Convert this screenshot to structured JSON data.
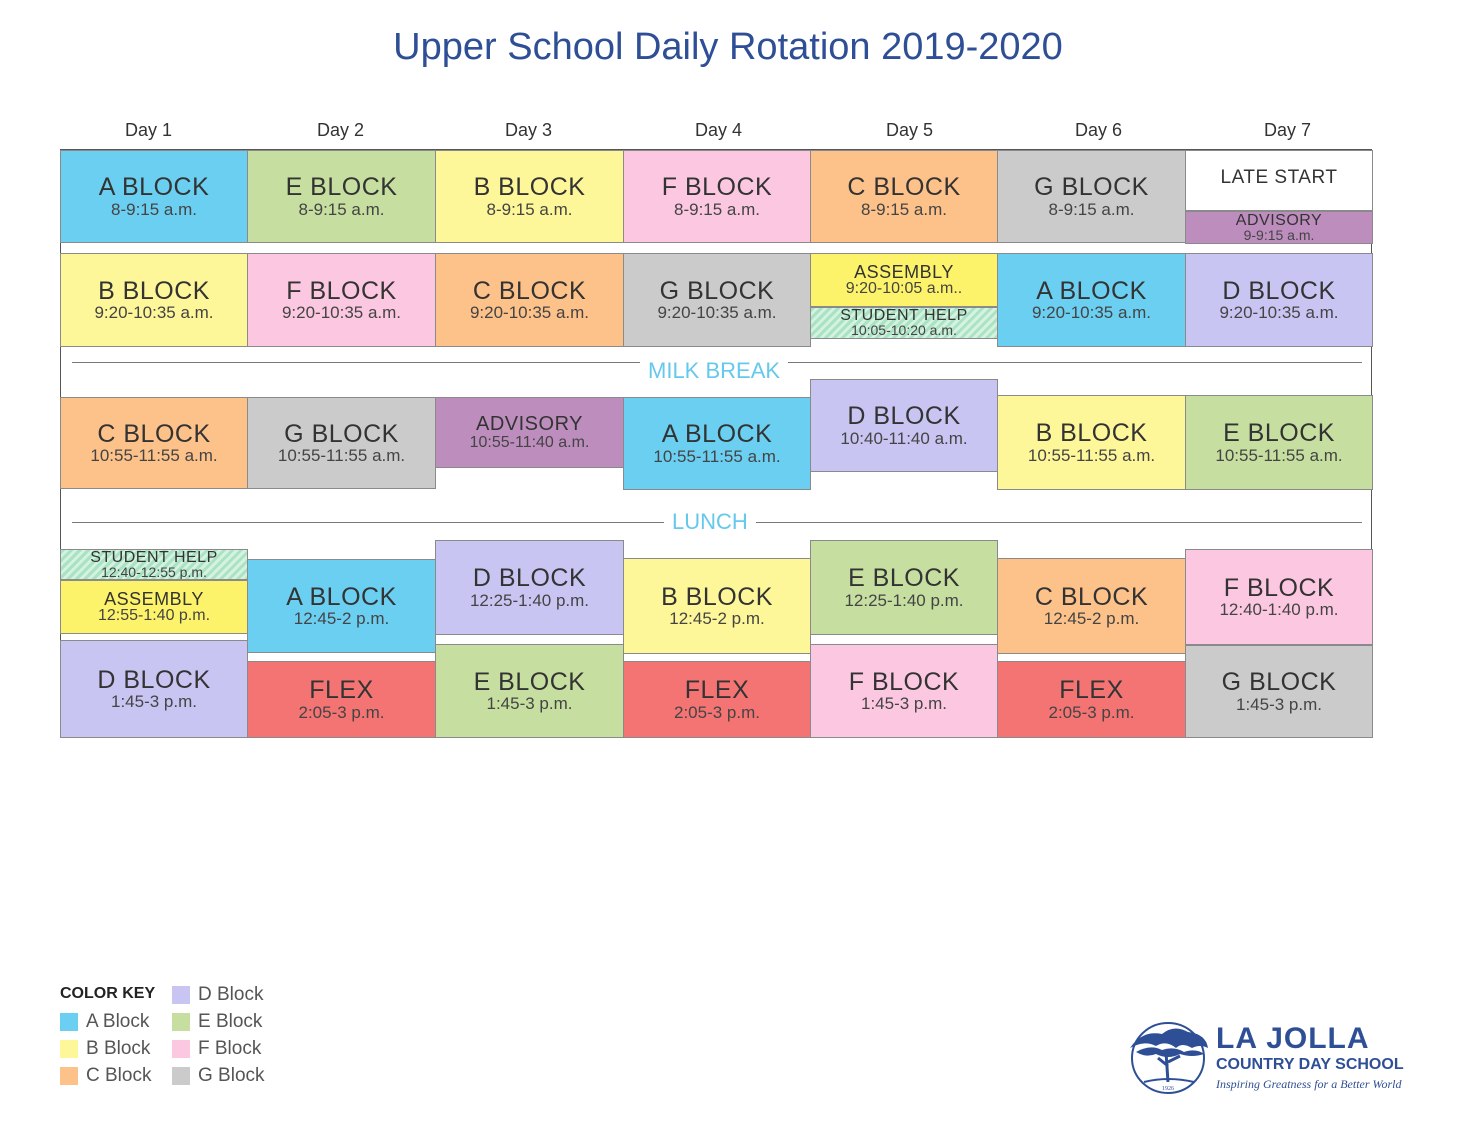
{
  "title": "Upper School Daily Rotation 2019-2020",
  "days": [
    "Day 1",
    "Day 2",
    "Day 3",
    "Day 4",
    "Day 5",
    "Day 6",
    "Day 7"
  ],
  "separators": {
    "milk_break": "MILK BREAK",
    "lunch": "LUNCH"
  },
  "colors": {
    "A": "#6bcff2",
    "B": "#fdf79a",
    "C": "#fdc18a",
    "D": "#c9c5f3",
    "E": "#c6dfa0",
    "F": "#fcc8e1",
    "G": "#cbcbcb",
    "advisory": "#bd8dbd",
    "assembly": "#fdf36a",
    "flex": "#f47474",
    "student_help": "#a9e3c2",
    "title": "#2e4f96",
    "separator_text": "#64c9ec"
  },
  "schedule": [
    {
      "day": "Day 1",
      "blocks": [
        {
          "name": "A BLOCK",
          "time": "8-9:15 a.m."
        },
        {
          "name": "B BLOCK",
          "time": "9:20-10:35 a.m."
        },
        {
          "name": "C BLOCK",
          "time": "10:55-11:55 a.m."
        },
        {
          "name": "STUDENT HELP",
          "time": "12:40-12:55 p.m."
        },
        {
          "name": "ASSEMBLY",
          "time": "12:55-1:40 p.m."
        },
        {
          "name": "D BLOCK",
          "time": "1:45-3 p.m."
        }
      ]
    },
    {
      "day": "Day 2",
      "blocks": [
        {
          "name": "E BLOCK",
          "time": "8-9:15 a.m."
        },
        {
          "name": "F BLOCK",
          "time": "9:20-10:35 a.m."
        },
        {
          "name": "G BLOCK",
          "time": "10:55-11:55 a.m."
        },
        {
          "name": "A BLOCK",
          "time": "12:45-2 p.m."
        },
        {
          "name": "FLEX",
          "time": "2:05-3 p.m."
        }
      ]
    },
    {
      "day": "Day 3",
      "blocks": [
        {
          "name": "B BLOCK",
          "time": "8-9:15 a.m."
        },
        {
          "name": "C BLOCK",
          "time": "9:20-10:35 a.m."
        },
        {
          "name": "ADVISORY",
          "time": "10:55-11:40 a.m."
        },
        {
          "name": "D BLOCK",
          "time": "12:25-1:40 p.m."
        },
        {
          "name": "E BLOCK",
          "time": "1:45-3 p.m."
        }
      ]
    },
    {
      "day": "Day 4",
      "blocks": [
        {
          "name": "F BLOCK",
          "time": "8-9:15 a.m."
        },
        {
          "name": "G BLOCK",
          "time": "9:20-10:35 a.m."
        },
        {
          "name": "A BLOCK",
          "time": "10:55-11:55 a.m."
        },
        {
          "name": "B BLOCK",
          "time": "12:45-2 p.m."
        },
        {
          "name": "FLEX",
          "time": "2:05-3 p.m."
        }
      ]
    },
    {
      "day": "Day 5",
      "blocks": [
        {
          "name": "C BLOCK",
          "time": "8-9:15 a.m."
        },
        {
          "name": "ASSEMBLY",
          "time": "9:20-10:05 a.m.."
        },
        {
          "name": "STUDENT HELP",
          "time": "10:05-10:20 a.m."
        },
        {
          "name": "D BLOCK",
          "time": "10:40-11:40 a.m."
        },
        {
          "name": "E BLOCK",
          "time": "12:25-1:40 p.m."
        },
        {
          "name": "F BLOCK",
          "time": "1:45-3 p.m."
        }
      ]
    },
    {
      "day": "Day 6",
      "blocks": [
        {
          "name": "G BLOCK",
          "time": "8-9:15 a.m."
        },
        {
          "name": "A BLOCK",
          "time": "9:20-10:35 a.m."
        },
        {
          "name": "B BLOCK",
          "time": "10:55-11:55 a.m."
        },
        {
          "name": "C BLOCK",
          "time": "12:45-2 p.m."
        },
        {
          "name": "FLEX",
          "time": "2:05-3 p.m."
        }
      ]
    },
    {
      "day": "Day 7",
      "blocks": [
        {
          "name": "LATE START",
          "time": ""
        },
        {
          "name": "ADVISORY",
          "time": "9-9:15 a.m."
        },
        {
          "name": "D BLOCK",
          "time": "9:20-10:35 a.m."
        },
        {
          "name": "E BLOCK",
          "time": "10:55-11:55 a.m."
        },
        {
          "name": "F BLOCK",
          "time": "12:40-1:40 p.m."
        },
        {
          "name": "G BLOCK",
          "time": "1:45-3 p.m."
        }
      ]
    }
  ],
  "legend": {
    "title": "COLOR KEY",
    "items": [
      "A Block",
      "B Block",
      "C Block",
      "D Block",
      "E Block",
      "F Block",
      "G Block"
    ]
  },
  "logo": {
    "name": "LA JOLLA",
    "subname": "COUNTRY DAY SCHOOL",
    "tagline": "Inspiring Greatness for a Better World",
    "seal_year": "1926"
  }
}
